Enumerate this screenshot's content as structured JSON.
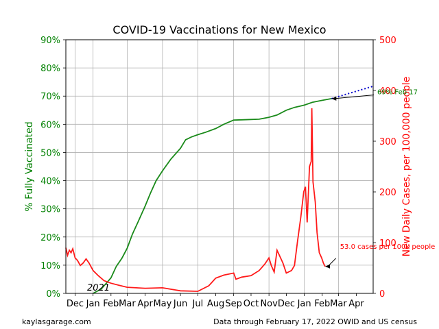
{
  "chart_data": {
    "type": "line",
    "title": "COVID-19 Vaccinations for New Mexico",
    "ylabel_left": "% Fully Vaccinated",
    "ylabel_right": "New Daily Cases, per 100,000 people",
    "year_label": "2021",
    "left_axis": {
      "range": [
        0,
        90
      ],
      "ticks": [
        "0%",
        "10%",
        "20%",
        "30%",
        "40%",
        "50%",
        "60%",
        "70%",
        "80%",
        "90%"
      ],
      "color": "#008000"
    },
    "right_axis": {
      "range": [
        0,
        500
      ],
      "ticks": [
        "0",
        "100",
        "200",
        "300",
        "400",
        "500"
      ],
      "color": "#ff0000"
    },
    "x_axis": {
      "start": "2020-11-15",
      "end": "2022-04-30",
      "ticks": [
        {
          "date": "2020-12-01",
          "label": "Dec"
        },
        {
          "date": "2021-01-01",
          "label": "Jan"
        },
        {
          "date": "2021-02-01",
          "label": "Feb"
        },
        {
          "date": "2021-03-01",
          "label": "Mar"
        },
        {
          "date": "2021-04-01",
          "label": "Apr"
        },
        {
          "date": "2021-05-01",
          "label": "May"
        },
        {
          "date": "2021-06-01",
          "label": "Jun"
        },
        {
          "date": "2021-07-01",
          "label": "Jul"
        },
        {
          "date": "2021-08-01",
          "label": "Aug"
        },
        {
          "date": "2021-09-01",
          "label": "Sep"
        },
        {
          "date": "2021-10-01",
          "label": "Oct"
        },
        {
          "date": "2021-11-01",
          "label": "Nov"
        },
        {
          "date": "2021-12-01",
          "label": "Dec"
        },
        {
          "date": "2022-01-01",
          "label": "Jan"
        },
        {
          "date": "2022-02-01",
          "label": "Feb"
        },
        {
          "date": "2022-03-01",
          "label": "Mar"
        },
        {
          "date": "2022-04-01",
          "label": "Apr"
        }
      ]
    },
    "grid": true,
    "series": [
      {
        "axis": "left",
        "color": "#1a8a1a",
        "points": [
          [
            "2021-01-01",
            0.0
          ],
          [
            "2021-01-15",
            1.5
          ],
          [
            "2021-02-01",
            5.5
          ],
          [
            "2021-02-10",
            9.5
          ],
          [
            "2021-02-20",
            12.5
          ],
          [
            "2021-03-01",
            16.0
          ],
          [
            "2021-03-10",
            21.0
          ],
          [
            "2021-03-20",
            25.5
          ],
          [
            "2021-04-01",
            31.0
          ],
          [
            "2021-04-10",
            35.5
          ],
          [
            "2021-04-20",
            40.0
          ],
          [
            "2021-05-01",
            43.5
          ],
          [
            "2021-05-15",
            47.5
          ],
          [
            "2021-06-01",
            51.5
          ],
          [
            "2021-06-10",
            54.5
          ],
          [
            "2021-06-20",
            55.5
          ],
          [
            "2021-07-01",
            56.3
          ],
          [
            "2021-07-15",
            57.2
          ],
          [
            "2021-08-01",
            58.5
          ],
          [
            "2021-08-15",
            60.0
          ],
          [
            "2021-09-01",
            61.5
          ],
          [
            "2021-09-15",
            61.6
          ],
          [
            "2021-10-01",
            61.7
          ],
          [
            "2021-10-15",
            61.8
          ],
          [
            "2021-11-01",
            62.5
          ],
          [
            "2021-11-15",
            63.3
          ],
          [
            "2021-12-01",
            65.0
          ],
          [
            "2021-12-15",
            66.0
          ],
          [
            "2022-01-01",
            66.8
          ],
          [
            "2022-01-15",
            67.8
          ],
          [
            "2022-02-01",
            68.5
          ],
          [
            "2022-02-17",
            69.1
          ]
        ]
      },
      {
        "axis": "right",
        "color": "#ff1a1a",
        "points": [
          [
            "2020-11-15",
            90
          ],
          [
            "2020-11-18",
            75
          ],
          [
            "2020-11-21",
            85
          ],
          [
            "2020-11-24",
            80
          ],
          [
            "2020-11-27",
            88
          ],
          [
            "2020-12-01",
            70
          ],
          [
            "2020-12-05",
            65
          ],
          [
            "2020-12-10",
            55
          ],
          [
            "2020-12-15",
            60
          ],
          [
            "2020-12-20",
            68
          ],
          [
            "2020-12-25",
            60
          ],
          [
            "2021-01-01",
            45
          ],
          [
            "2021-01-10",
            35
          ],
          [
            "2021-01-20",
            25
          ],
          [
            "2021-02-01",
            20
          ],
          [
            "2021-02-15",
            16
          ],
          [
            "2021-03-01",
            12
          ],
          [
            "2021-04-01",
            10
          ],
          [
            "2021-05-01",
            11
          ],
          [
            "2021-06-01",
            5
          ],
          [
            "2021-07-01",
            4
          ],
          [
            "2021-07-20",
            15
          ],
          [
            "2021-08-01",
            30
          ],
          [
            "2021-08-15",
            36
          ],
          [
            "2021-09-01",
            40
          ],
          [
            "2021-09-05",
            28
          ],
          [
            "2021-09-15",
            32
          ],
          [
            "2021-10-01",
            35
          ],
          [
            "2021-10-15",
            45
          ],
          [
            "2021-10-25",
            58
          ],
          [
            "2021-11-01",
            70
          ],
          [
            "2021-11-05",
            55
          ],
          [
            "2021-11-10",
            42
          ],
          [
            "2021-11-15",
            85
          ],
          [
            "2021-11-25",
            60
          ],
          [
            "2021-12-01",
            40
          ],
          [
            "2021-12-10",
            45
          ],
          [
            "2021-12-15",
            55
          ],
          [
            "2021-12-20",
            100
          ],
          [
            "2021-12-26",
            150
          ],
          [
            "2021-12-31",
            200
          ],
          [
            "2022-01-03",
            210
          ],
          [
            "2022-01-06",
            140
          ],
          [
            "2022-01-10",
            250
          ],
          [
            "2022-01-13",
            260
          ],
          [
            "2022-01-14",
            365
          ],
          [
            "2022-01-16",
            220
          ],
          [
            "2022-01-20",
            180
          ],
          [
            "2022-01-23",
            120
          ],
          [
            "2022-01-27",
            80
          ],
          [
            "2022-01-31",
            70
          ],
          [
            "2022-02-03",
            60
          ],
          [
            "2022-02-06",
            53
          ]
        ]
      },
      {
        "axis": "left",
        "color": "#0000cc",
        "dotted": true,
        "points": [
          [
            "2022-02-17",
            69.1
          ],
          [
            "2022-04-30",
            73.5
          ]
        ]
      }
    ],
    "annotations": [
      {
        "text": "69% Feb 17",
        "color": "#008000",
        "text_x": "2022-04-30",
        "text_y": 70.9,
        "target_x": "2022-02-17",
        "target_y": 69.1,
        "axis": "left"
      },
      {
        "text": "53.0 cases per 100k people",
        "color": "#ff0000",
        "text_x": "2022-02-27",
        "text_y": 80,
        "target_x": "2022-02-06",
        "target_y": 53,
        "axis": "right"
      }
    ]
  },
  "footer": {
    "left": "kaylasgarage.com",
    "right": "Data through February 17, 2022 OWID and US census"
  }
}
